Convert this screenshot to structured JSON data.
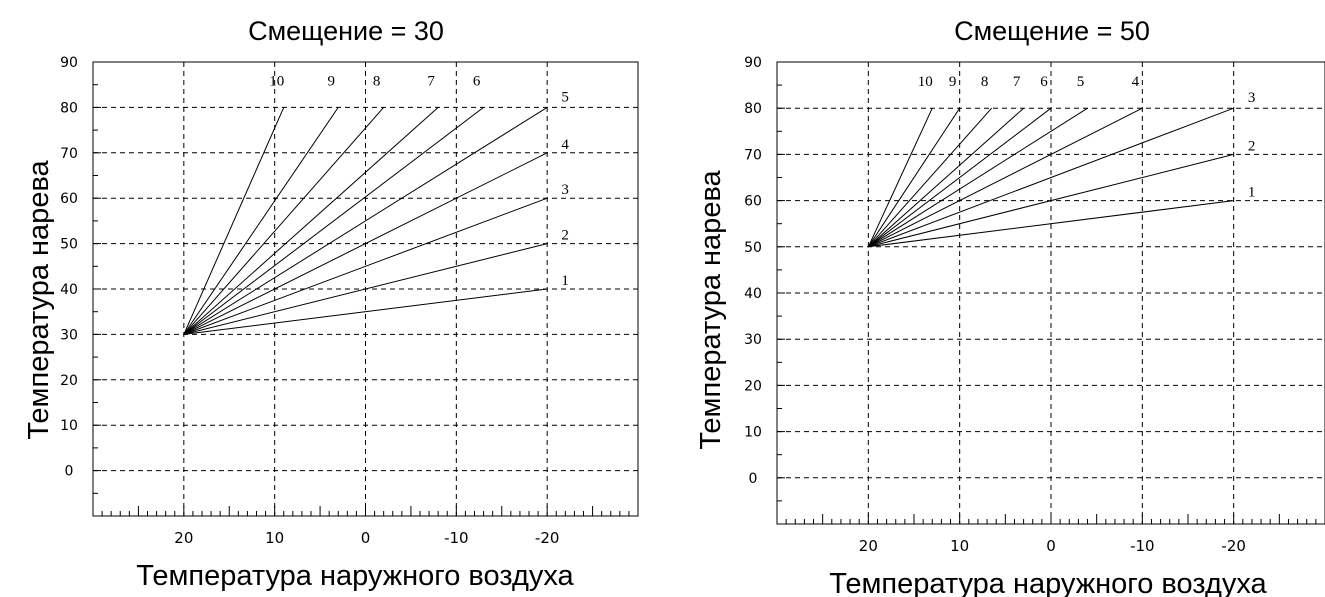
{
  "chart_data": [
    {
      "type": "line",
      "title": "Смещение = 30",
      "xlabel": "Температура наружного воздуха",
      "ylabel": "Температура нарева",
      "xlim": [
        30,
        -30
      ],
      "ylim": [
        -10,
        90
      ],
      "x_grid": [
        20,
        10,
        0,
        -10,
        -20
      ],
      "y_grid": [
        0,
        10,
        20,
        30,
        40,
        50,
        60,
        70,
        80
      ],
      "x_tick_labels": [
        "20",
        "10",
        "0",
        "-10",
        "-20"
      ],
      "y_tick_labels": [
        "0",
        "10",
        "20",
        "30",
        "40",
        "50",
        "60",
        "70",
        "80",
        "90"
      ],
      "origin": {
        "x": 20,
        "y": 30
      },
      "series": [
        {
          "name": "1",
          "x": [
            20,
            -20
          ],
          "y": [
            30,
            40
          ]
        },
        {
          "name": "2",
          "x": [
            20,
            -20
          ],
          "y": [
            30,
            50
          ]
        },
        {
          "name": "3",
          "x": [
            20,
            -20
          ],
          "y": [
            30,
            60
          ]
        },
        {
          "name": "4",
          "x": [
            20,
            -20
          ],
          "y": [
            30,
            70
          ]
        },
        {
          "name": "5",
          "x": [
            20,
            -20
          ],
          "y": [
            30,
            80
          ]
        },
        {
          "name": "6",
          "x": [
            20,
            -13
          ],
          "y": [
            30,
            80
          ]
        },
        {
          "name": "7",
          "x": [
            20,
            -8
          ],
          "y": [
            30,
            80
          ]
        },
        {
          "name": "8",
          "x": [
            20,
            -2
          ],
          "y": [
            30,
            80
          ]
        },
        {
          "name": "9",
          "x": [
            20,
            3
          ],
          "y": [
            30,
            80
          ]
        },
        {
          "name": "10",
          "x": [
            20,
            9
          ],
          "y": [
            30,
            80
          ]
        }
      ]
    },
    {
      "type": "line",
      "title": "Смещение = 50",
      "xlabel": "Температура наружного воздуха",
      "ylabel": "Температура нарева",
      "xlim": [
        30,
        -30
      ],
      "ylim": [
        -10,
        90
      ],
      "x_grid": [
        20,
        10,
        0,
        -10,
        -20
      ],
      "y_grid": [
        0,
        10,
        20,
        30,
        40,
        50,
        60,
        70,
        80
      ],
      "x_tick_labels": [
        "20",
        "10",
        "0",
        "-10",
        "-20"
      ],
      "y_tick_labels": [
        "0",
        "10",
        "20",
        "30",
        "40",
        "50",
        "60",
        "70",
        "80",
        "90"
      ],
      "origin": {
        "x": 20,
        "y": 50
      },
      "series": [
        {
          "name": "1",
          "x": [
            20,
            -20
          ],
          "y": [
            50,
            60
          ]
        },
        {
          "name": "2",
          "x": [
            20,
            -20
          ],
          "y": [
            50,
            70
          ]
        },
        {
          "name": "3",
          "x": [
            20,
            -20
          ],
          "y": [
            50,
            80
          ]
        },
        {
          "name": "4",
          "x": [
            20,
            -10
          ],
          "y": [
            50,
            80
          ]
        },
        {
          "name": "5",
          "x": [
            20,
            -4
          ],
          "y": [
            50,
            80
          ]
        },
        {
          "name": "6",
          "x": [
            20,
            0
          ],
          "y": [
            50,
            80
          ]
        },
        {
          "name": "7",
          "x": [
            20,
            3
          ],
          "y": [
            50,
            80
          ]
        },
        {
          "name": "8",
          "x": [
            20,
            6.5
          ],
          "y": [
            50,
            80
          ]
        },
        {
          "name": "9",
          "x": [
            20,
            10
          ],
          "y": [
            50,
            80
          ]
        },
        {
          "name": "10",
          "x": [
            20,
            13
          ],
          "y": [
            50,
            80
          ]
        }
      ]
    }
  ]
}
